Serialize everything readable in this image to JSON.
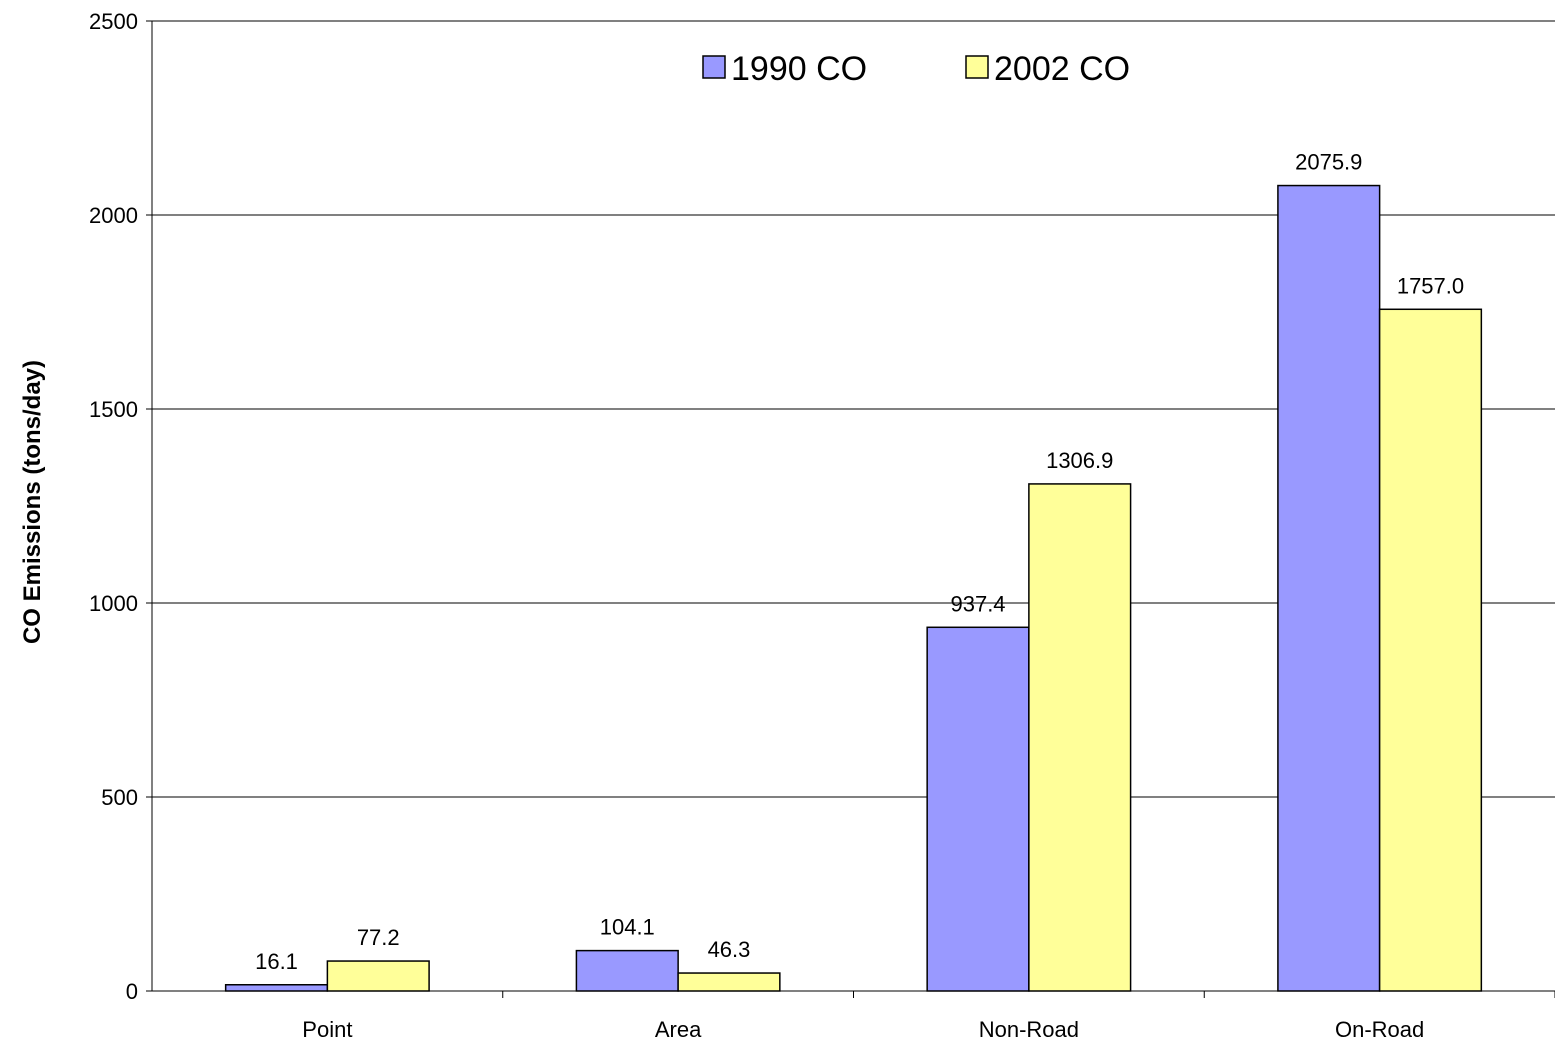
{
  "chart_data": {
    "type": "bar",
    "title": "",
    "xlabel": "",
    "ylabel": "CO Emissions (tons/day)",
    "ylim": [
      0,
      2500
    ],
    "yticks": [
      0,
      500,
      1000,
      1500,
      2000,
      2500
    ],
    "grid": true,
    "legend": "top-center",
    "categories": [
      "Point",
      "Area",
      "Non-Road",
      "On-Road"
    ],
    "series": [
      {
        "name": "1990 CO",
        "color": "#9999ff",
        "values": [
          16.1,
          104.1,
          937.4,
          2075.9
        ],
        "labels": [
          "16.1",
          "104.1",
          "937.4",
          "2075.9"
        ]
      },
      {
        "name": "2002 CO",
        "color": "#ffff99",
        "values": [
          77.2,
          46.3,
          1306.9,
          1757.0
        ],
        "labels": [
          "77.2",
          "46.3",
          "1306.9",
          "1757.0"
        ]
      }
    ]
  }
}
